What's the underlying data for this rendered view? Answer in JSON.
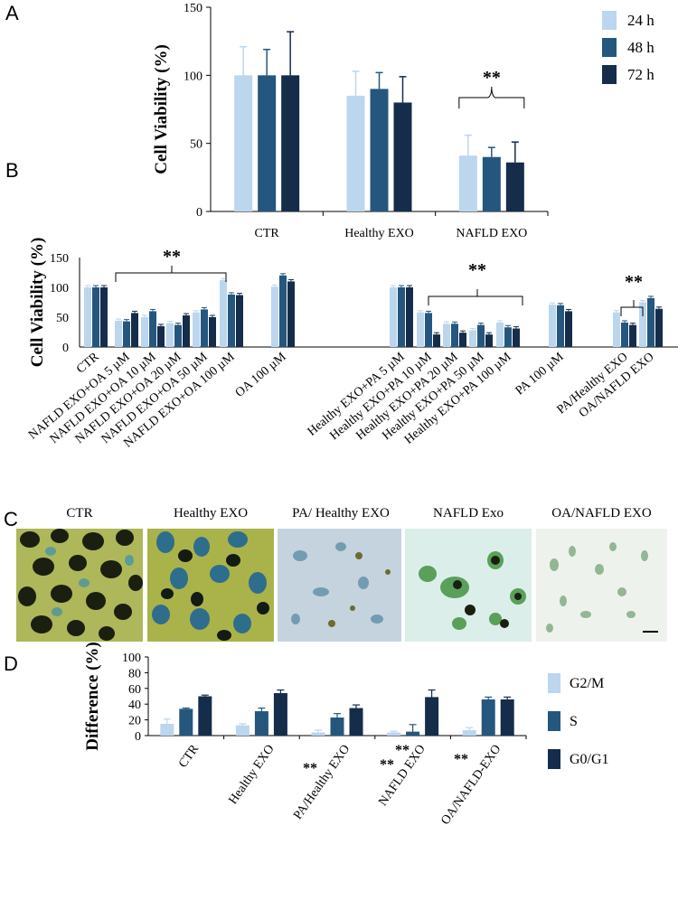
{
  "panels": {
    "A": "A",
    "B": "B",
    "C": "C",
    "D": "D"
  },
  "colors": {
    "s1": "#bcd6ee",
    "s2": "#25577e",
    "s3": "#152d4a"
  },
  "chart_data": [
    {
      "id": "A",
      "type": "bar",
      "ylabel": "Cell Viability (%)",
      "ylim": [
        0,
        150
      ],
      "yticks": [
        0,
        50,
        100,
        150
      ],
      "categories": [
        "CTR",
        "Healthy EXO",
        "NAFLD EXO"
      ],
      "series": [
        {
          "name": "24 h",
          "values": [
            100,
            85,
            41
          ],
          "errors": [
            21,
            18,
            15
          ]
        },
        {
          "name": "48 h",
          "values": [
            100,
            90,
            40
          ],
          "errors": [
            19,
            12,
            7
          ]
        },
        {
          "name": "72 h",
          "values": [
            100,
            80,
            36
          ],
          "errors": [
            32,
            19,
            15
          ]
        }
      ],
      "annotations": [
        {
          "text": "**",
          "group": "NAFLD EXO"
        }
      ],
      "legend": "top-right"
    },
    {
      "id": "B",
      "type": "bar",
      "ylabel": "Cell Viability (%)",
      "ylim": [
        0,
        150
      ],
      "yticks": [
        0,
        50,
        100,
        150
      ],
      "categories": [
        "CTR",
        "NAFLD EXO+OA 5 µM",
        "NAFLD EXO+OA 10 µM",
        "NAFLD EXO+OA 20 µM",
        "NAFLD EXO+OA 50 µM",
        "NAFLD EXO+OA 100 µM",
        "OA 100 µM",
        "Healthy EXO+PA 5 µM",
        "Healthy EXO+PA 10 µM",
        "Healthy EXO+PA 20 µM",
        "Healthy EXO+PA 50 µM",
        "Healthy EXO+PA 100 µM",
        "PA 100 µM",
        "PA/Healthy EXO",
        "OA/NAFLD EXO"
      ],
      "series": [
        {
          "values": [
            100,
            44,
            50,
            40,
            58,
            112,
            101,
            100,
            58,
            39,
            28,
            41,
            71,
            58,
            75
          ]
        },
        {
          "values": [
            100,
            43,
            60,
            37,
            63,
            88,
            120,
            100,
            57,
            39,
            37,
            33,
            70,
            41,
            82
          ]
        },
        {
          "values": [
            100,
            57,
            35,
            53,
            50,
            87,
            110,
            100,
            21,
            24,
            21,
            31,
            60,
            37,
            64
          ]
        }
      ],
      "annotations": [
        {
          "text": "**"
        },
        {
          "text": "**"
        },
        {
          "text": "**"
        }
      ]
    },
    {
      "id": "D",
      "type": "bar",
      "ylabel": "Difference (%)",
      "ylim": [
        0,
        100
      ],
      "yticks": [
        0,
        20,
        40,
        60,
        80,
        100
      ],
      "categories": [
        "CTR",
        "Healthy EXO",
        "PA/Healthy EXO",
        "NAFLD EXO",
        "OA/NAFLD-EXO"
      ],
      "series": [
        {
          "name": "G2/M",
          "values": [
            15,
            13,
            4,
            4,
            7
          ],
          "errors": [
            6,
            2,
            3,
            1.5,
            3
          ]
        },
        {
          "name": "S",
          "values": [
            34,
            31,
            23,
            5,
            46
          ],
          "errors": [
            1,
            4,
            5,
            9,
            3
          ]
        },
        {
          "name": "G0/G1",
          "values": [
            50,
            54,
            35,
            49,
            46
          ],
          "errors": [
            1.5,
            4,
            4,
            9,
            3
          ]
        }
      ],
      "annotations": [
        "**",
        "**",
        "**",
        "**"
      ],
      "legend": "right"
    }
  ],
  "micrographs": {
    "titles": [
      "CTR",
      "Healthy  EXO",
      "PA/ Healthy EXO",
      "NAFLD Exo",
      "OA/NAFLD EXO"
    ]
  }
}
